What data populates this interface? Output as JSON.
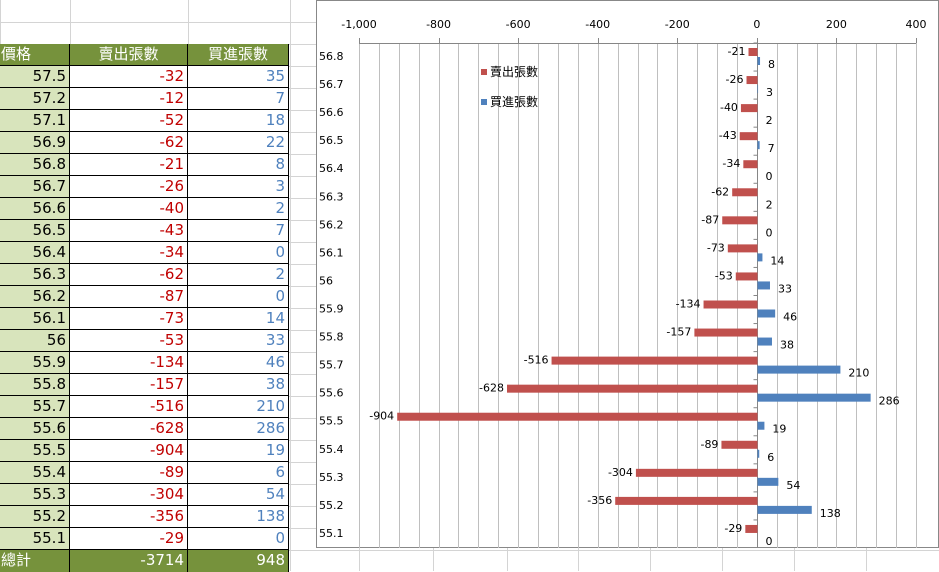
{
  "table": {
    "headers": [
      "價格",
      "賣出張數",
      "買進張數"
    ],
    "rows": [
      {
        "price": "57.5",
        "sell": "-32",
        "buy": "35"
      },
      {
        "price": "57.2",
        "sell": "-12",
        "buy": "7"
      },
      {
        "price": "57.1",
        "sell": "-52",
        "buy": "18"
      },
      {
        "price": "56.9",
        "sell": "-62",
        "buy": "22"
      },
      {
        "price": "56.8",
        "sell": "-21",
        "buy": "8"
      },
      {
        "price": "56.7",
        "sell": "-26",
        "buy": "3"
      },
      {
        "price": "56.6",
        "sell": "-40",
        "buy": "2"
      },
      {
        "price": "56.5",
        "sell": "-43",
        "buy": "7"
      },
      {
        "price": "56.4",
        "sell": "-34",
        "buy": "0"
      },
      {
        "price": "56.3",
        "sell": "-62",
        "buy": "2"
      },
      {
        "price": "56.2",
        "sell": "-87",
        "buy": "0"
      },
      {
        "price": "56.1",
        "sell": "-73",
        "buy": "14"
      },
      {
        "price": "56",
        "sell": "-53",
        "buy": "33"
      },
      {
        "price": "55.9",
        "sell": "-134",
        "buy": "46"
      },
      {
        "price": "55.8",
        "sell": "-157",
        "buy": "38"
      },
      {
        "price": "55.7",
        "sell": "-516",
        "buy": "210"
      },
      {
        "price": "55.6",
        "sell": "-628",
        "buy": "286"
      },
      {
        "price": "55.5",
        "sell": "-904",
        "buy": "19"
      },
      {
        "price": "55.4",
        "sell": "-89",
        "buy": "6"
      },
      {
        "price": "55.3",
        "sell": "-304",
        "buy": "54"
      },
      {
        "price": "55.2",
        "sell": "-356",
        "buy": "138"
      },
      {
        "price": "55.1",
        "sell": "-29",
        "buy": "0"
      }
    ],
    "total": {
      "label": "總計",
      "sell": "-3714",
      "buy": "948"
    }
  },
  "colors": {
    "sell_bar": "#c0504d",
    "buy_bar": "#4f81bd",
    "header_bg": "#76923c",
    "price_bg": "#d8e4bc",
    "sell_text": "#c00000",
    "buy_text": "#4f81bd"
  },
  "chart_data": {
    "type": "bar",
    "orientation": "horizontal",
    "categories": [
      "56.8",
      "56.7",
      "56.6",
      "56.5",
      "56.4",
      "56.3",
      "56.2",
      "56.1",
      "56",
      "55.9",
      "55.8",
      "55.7",
      "55.6",
      "55.5",
      "55.4",
      "55.3",
      "55.2",
      "55.1"
    ],
    "series": [
      {
        "name": "賣出張數",
        "values": [
          -21,
          -26,
          -40,
          -43,
          -34,
          -62,
          -87,
          -73,
          -53,
          -134,
          -157,
          -516,
          -628,
          -904,
          -89,
          -304,
          -356,
          -29
        ]
      },
      {
        "name": "買進張數",
        "values": [
          8,
          3,
          2,
          7,
          0,
          2,
          0,
          14,
          33,
          46,
          38,
          210,
          286,
          19,
          6,
          54,
          138,
          0
        ]
      }
    ],
    "xlim": [
      -1000,
      400
    ],
    "x_ticks": [
      -1000,
      -800,
      -600,
      -400,
      -200,
      0,
      200,
      400
    ],
    "x_tick_labels": [
      "-1,000",
      "-800",
      "-600",
      "-400",
      "-200",
      "0",
      "200",
      "400"
    ],
    "x_axis_position": "top",
    "grid": true,
    "legend_position": "top-left",
    "data_labels": true
  }
}
